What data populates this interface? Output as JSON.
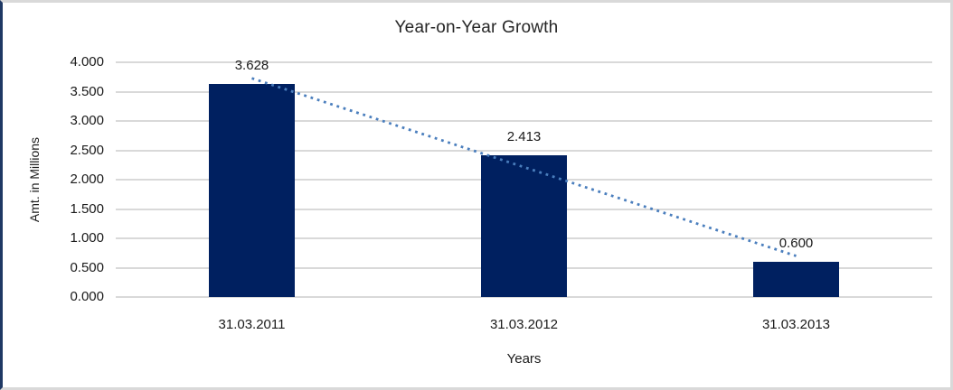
{
  "chart_data": {
    "type": "bar",
    "title": "Year-on-Year Growth",
    "xlabel": "Years",
    "ylabel": "Amt. in Millions",
    "categories": [
      "31.03.2011",
      "31.03.2012",
      "31.03.2013"
    ],
    "values": [
      3.628,
      2.413,
      0.6
    ],
    "data_labels": [
      "3.628",
      "2.413",
      "0.600"
    ],
    "ylim": [
      0,
      4
    ],
    "ytick_step": 0.5,
    "ytick_labels": [
      "0.000",
      "0.500",
      "1.000",
      "1.500",
      "2.000",
      "2.500",
      "3.000",
      "3.500",
      "4.000"
    ],
    "grid": true,
    "legend": "none",
    "trendline": {
      "style": "dotted",
      "fit": "linear"
    },
    "colors": {
      "bar": "#002060",
      "trendline": "#4a7ebd",
      "gridline": "#d9d9d9",
      "text": "#1a1a1a",
      "frame": "#d9d9d9",
      "frame_left_accent": "#1f3864"
    }
  }
}
